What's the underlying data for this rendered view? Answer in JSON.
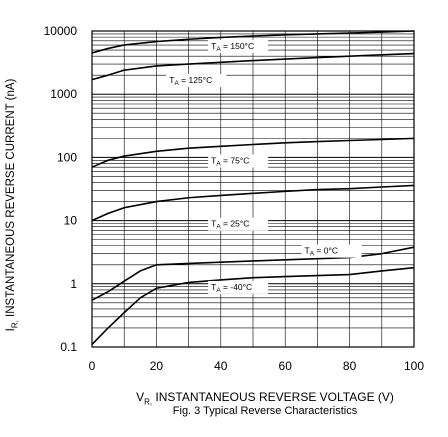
{
  "chart_data": {
    "type": "line",
    "caption": "Fig. 3  Typical Reverse Characteristics",
    "xlabel": "VR, INSTANTANEOUS REVERSE VOLTAGE (V)",
    "xlabel_main": "V",
    "xlabel_sub": "R,",
    "xlabel_rest": " INSTANTANEOUS REVERSE VOLTAGE (V)",
    "ylabel_main": "I",
    "ylabel_sub": "R,",
    "ylabel_rest": " INSTANTANEOUS REVERSE CURRENT (nA)",
    "xlim": [
      0,
      100
    ],
    "ylim": [
      0.1,
      10000
    ],
    "yscale": "log",
    "grid": true,
    "x_ticks": [
      0,
      20,
      40,
      60,
      80,
      100
    ],
    "x_tick_labels": [
      "0",
      "20",
      "40",
      "60",
      "80",
      "100"
    ],
    "y_ticks": [
      0.1,
      1,
      10,
      100,
      1000,
      10000
    ],
    "y_tick_labels": [
      "0.1",
      "1",
      "10",
      "100",
      "1000",
      "10000"
    ],
    "series": [
      {
        "label_main": "T",
        "label_sub": "A",
        "label_rest": " = 150°C",
        "label_at": [
          37,
          5200
        ],
        "x": [
          0,
          5,
          10,
          20,
          30,
          40,
          50,
          60,
          70,
          80,
          90,
          100
        ],
        "y": [
          4500,
          5300,
          6000,
          6800,
          7400,
          7900,
          8300,
          8700,
          9000,
          9300,
          9600,
          10000
        ]
      },
      {
        "label_main": "T",
        "label_sub": "A",
        "label_rest": " = 125°C",
        "label_at": [
          24,
          1500
        ],
        "x": [
          0,
          5,
          10,
          20,
          30,
          40,
          50,
          60,
          70,
          80,
          90,
          100
        ],
        "y": [
          1700,
          2000,
          2400,
          2800,
          3000,
          3200,
          3400,
          3600,
          3800,
          4000,
          4200,
          4400
        ]
      },
      {
        "label_main": "T",
        "label_sub": "A",
        "label_rest": " = 75°C",
        "label_at": [
          37,
          80
        ],
        "x": [
          0,
          5,
          10,
          20,
          30,
          40,
          50,
          60,
          70,
          80,
          90,
          100
        ],
        "y": [
          70,
          90,
          105,
          125,
          140,
          150,
          160,
          170,
          178,
          185,
          192,
          200
        ]
      },
      {
        "label_main": "T",
        "label_sub": "A",
        "label_rest": " = 25°C",
        "label_at": [
          37,
          8
        ],
        "x": [
          0,
          5,
          10,
          20,
          30,
          40,
          50,
          60,
          70,
          80,
          90,
          100
        ],
        "y": [
          10,
          13,
          16,
          20,
          23,
          25,
          27,
          29,
          31,
          32,
          34,
          36
        ]
      },
      {
        "label_main": "T",
        "label_sub": "A",
        "label_rest": " = 0°C",
        "label_at": [
          66,
          3
        ],
        "x": [
          0,
          5,
          10,
          15,
          20,
          30,
          40,
          50,
          60,
          70,
          80,
          90,
          100
        ],
        "y": [
          0.55,
          0.75,
          1.1,
          1.6,
          2.0,
          2.1,
          2.2,
          2.3,
          2.4,
          2.5,
          2.6,
          3.0,
          3.8
        ]
      },
      {
        "label_main": "T",
        "label_sub": "A",
        "label_rest": " = -40°C",
        "label_at": [
          37,
          0.8
        ],
        "x": [
          0,
          5,
          10,
          15,
          20,
          30,
          40,
          50,
          60,
          70,
          80,
          90,
          100
        ],
        "y": [
          0.11,
          0.2,
          0.35,
          0.6,
          0.85,
          1.05,
          1.15,
          1.25,
          1.3,
          1.35,
          1.4,
          1.6,
          1.8
        ]
      }
    ]
  }
}
